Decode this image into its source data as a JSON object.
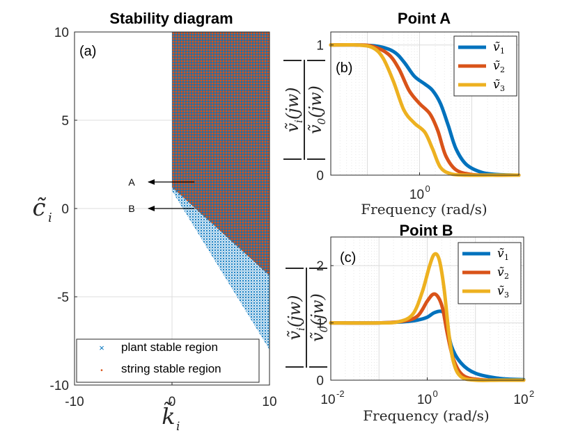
{
  "figure": {
    "colors": {
      "blue": "#0072bd",
      "orange": "#d95319",
      "yellow": "#edb120",
      "axis": "#262626",
      "grid": "#dcdcdc"
    }
  },
  "chart_data": [
    {
      "type": "scatter",
      "panel_label": "(a)",
      "title": "Stability diagram",
      "xlabel": "k̃",
      "xlabel_sub": "i",
      "ylabel": "c̃",
      "ylabel_sub": "i",
      "xlim": [
        -10,
        10
      ],
      "ylim": [
        -10,
        10
      ],
      "xticks": [
        "-10",
        "0",
        "10"
      ],
      "yticks": [
        "-10",
        "-5",
        "0",
        "5",
        "10"
      ],
      "grid": true,
      "legend": {
        "location": "bottom-left",
        "entries": [
          {
            "marker": "×",
            "label": "plant stable region",
            "color": "#0072bd"
          },
          {
            "marker": "•",
            "label": "string stable region",
            "color": "#d95319"
          }
        ]
      },
      "regions": {
        "plant_stable": {
          "x_range": [
            0,
            10
          ],
          "upper_c": 10,
          "lower_boundary": [
            [
              0,
              1.0
            ],
            [
              10,
              -8.0
            ]
          ]
        },
        "string_stable": {
          "x_range": [
            0,
            10
          ],
          "upper_c": 10,
          "lower_boundary": [
            [
              0,
              1.2
            ],
            [
              10,
              -3.8
            ]
          ]
        }
      },
      "annotations": [
        {
          "text": "A",
          "point": [
            0,
            1.5
          ],
          "arrow_from": [
            2.3,
            1.5
          ]
        },
        {
          "text": "B",
          "point": [
            0,
            0.0
          ],
          "arrow_from": [
            2.3,
            0.0
          ]
        }
      ]
    },
    {
      "type": "line",
      "panel_label": "(b)",
      "title": "Point A",
      "xlabel": "Frequency (rad/s)",
      "ylabel": "|ṽi(jw)| / |ṽ0(jw)|",
      "xscale": "log",
      "xlim_log10": [
        -1.7,
        1.9
      ],
      "ylim": [
        0,
        1.1
      ],
      "xticks": [
        {
          "base": "10",
          "exp": "0"
        }
      ],
      "yticks": [
        "0",
        "1"
      ],
      "legend_location": "top-right",
      "series": [
        {
          "name": "ṽ1",
          "base": "ṽ",
          "sub": "1",
          "color": "#0072bd",
          "log10_w": [
            -1.7,
            -1.2,
            -0.8,
            -0.5,
            -0.3,
            -0.1,
            0.1,
            0.25,
            0.4,
            0.55,
            0.7,
            0.9,
            1.2,
            1.5,
            1.9
          ],
          "values": [
            1.0,
            1.0,
            0.99,
            0.95,
            0.87,
            0.76,
            0.7,
            0.65,
            0.55,
            0.38,
            0.2,
            0.08,
            0.02,
            0.005,
            0.0
          ]
        },
        {
          "name": "ṽ2",
          "base": "ṽ",
          "sub": "2",
          "color": "#d95319",
          "log10_w": [
            -1.7,
            -1.2,
            -0.9,
            -0.6,
            -0.4,
            -0.2,
            0.0,
            0.2,
            0.35,
            0.5,
            0.7,
            1.0,
            1.4,
            1.9
          ],
          "values": [
            1.0,
            1.0,
            0.99,
            0.93,
            0.82,
            0.65,
            0.55,
            0.47,
            0.34,
            0.15,
            0.04,
            0.005,
            0.0,
            0.0
          ]
        },
        {
          "name": "ṽ3",
          "base": "ṽ",
          "sub": "3",
          "color": "#edb120",
          "log10_w": [
            -1.7,
            -1.2,
            -0.9,
            -0.7,
            -0.5,
            -0.3,
            -0.1,
            0.1,
            0.25,
            0.4,
            0.6,
            0.9,
            1.4,
            1.9
          ],
          "values": [
            1.0,
            1.0,
            0.98,
            0.9,
            0.72,
            0.5,
            0.4,
            0.33,
            0.2,
            0.06,
            0.01,
            0.0,
            0.0,
            0.0
          ]
        }
      ]
    },
    {
      "type": "line",
      "panel_label": "(c)",
      "title": "Point B",
      "xlabel": "Frequency (rad/s)",
      "ylabel": "|ṽi(jw)| / |ṽ0(jw)|",
      "xscale": "log",
      "xlim_log10": [
        -2,
        2
      ],
      "ylim": [
        0,
        2.5
      ],
      "xticks": [
        {
          "base": "10",
          "exp": "-2"
        },
        {
          "base": "10",
          "exp": "0"
        },
        {
          "base": "10",
          "exp": "2"
        }
      ],
      "yticks": [
        "0",
        "1",
        "2"
      ],
      "legend_location": "top-right",
      "series": [
        {
          "name": "ṽ1",
          "base": "ṽ",
          "sub": "1",
          "color": "#0072bd",
          "log10_w": [
            -2,
            -1.0,
            -0.5,
            -0.2,
            0.0,
            0.15,
            0.3,
            0.38,
            0.5,
            0.7,
            1.0,
            1.5,
            2.0
          ],
          "values": [
            1.0,
            1.0,
            1.02,
            1.05,
            1.1,
            1.18,
            1.2,
            1.1,
            0.6,
            0.3,
            0.12,
            0.03,
            0.01
          ]
        },
        {
          "name": "ṽ2",
          "base": "ṽ",
          "sub": "2",
          "color": "#d95319",
          "log10_w": [
            -2,
            -1.0,
            -0.5,
            -0.2,
            0.0,
            0.12,
            0.22,
            0.32,
            0.42,
            0.55,
            0.75,
            1.1,
            1.6,
            2.0
          ],
          "values": [
            1.0,
            1.0,
            1.03,
            1.12,
            1.38,
            1.5,
            1.46,
            1.25,
            0.8,
            0.35,
            0.08,
            0.01,
            0.0,
            0.0
          ]
        },
        {
          "name": "ṽ3",
          "base": "ṽ",
          "sub": "3",
          "color": "#edb120",
          "log10_w": [
            -2,
            -1.0,
            -0.6,
            -0.3,
            -0.1,
            0.05,
            0.15,
            0.25,
            0.35,
            0.45,
            0.55,
            0.7,
            1.0,
            1.5,
            2.0
          ],
          "values": [
            1.0,
            1.0,
            1.02,
            1.15,
            1.55,
            2.0,
            2.2,
            2.1,
            1.6,
            0.8,
            0.3,
            0.06,
            0.0,
            0.0,
            0.0
          ]
        }
      ]
    }
  ]
}
